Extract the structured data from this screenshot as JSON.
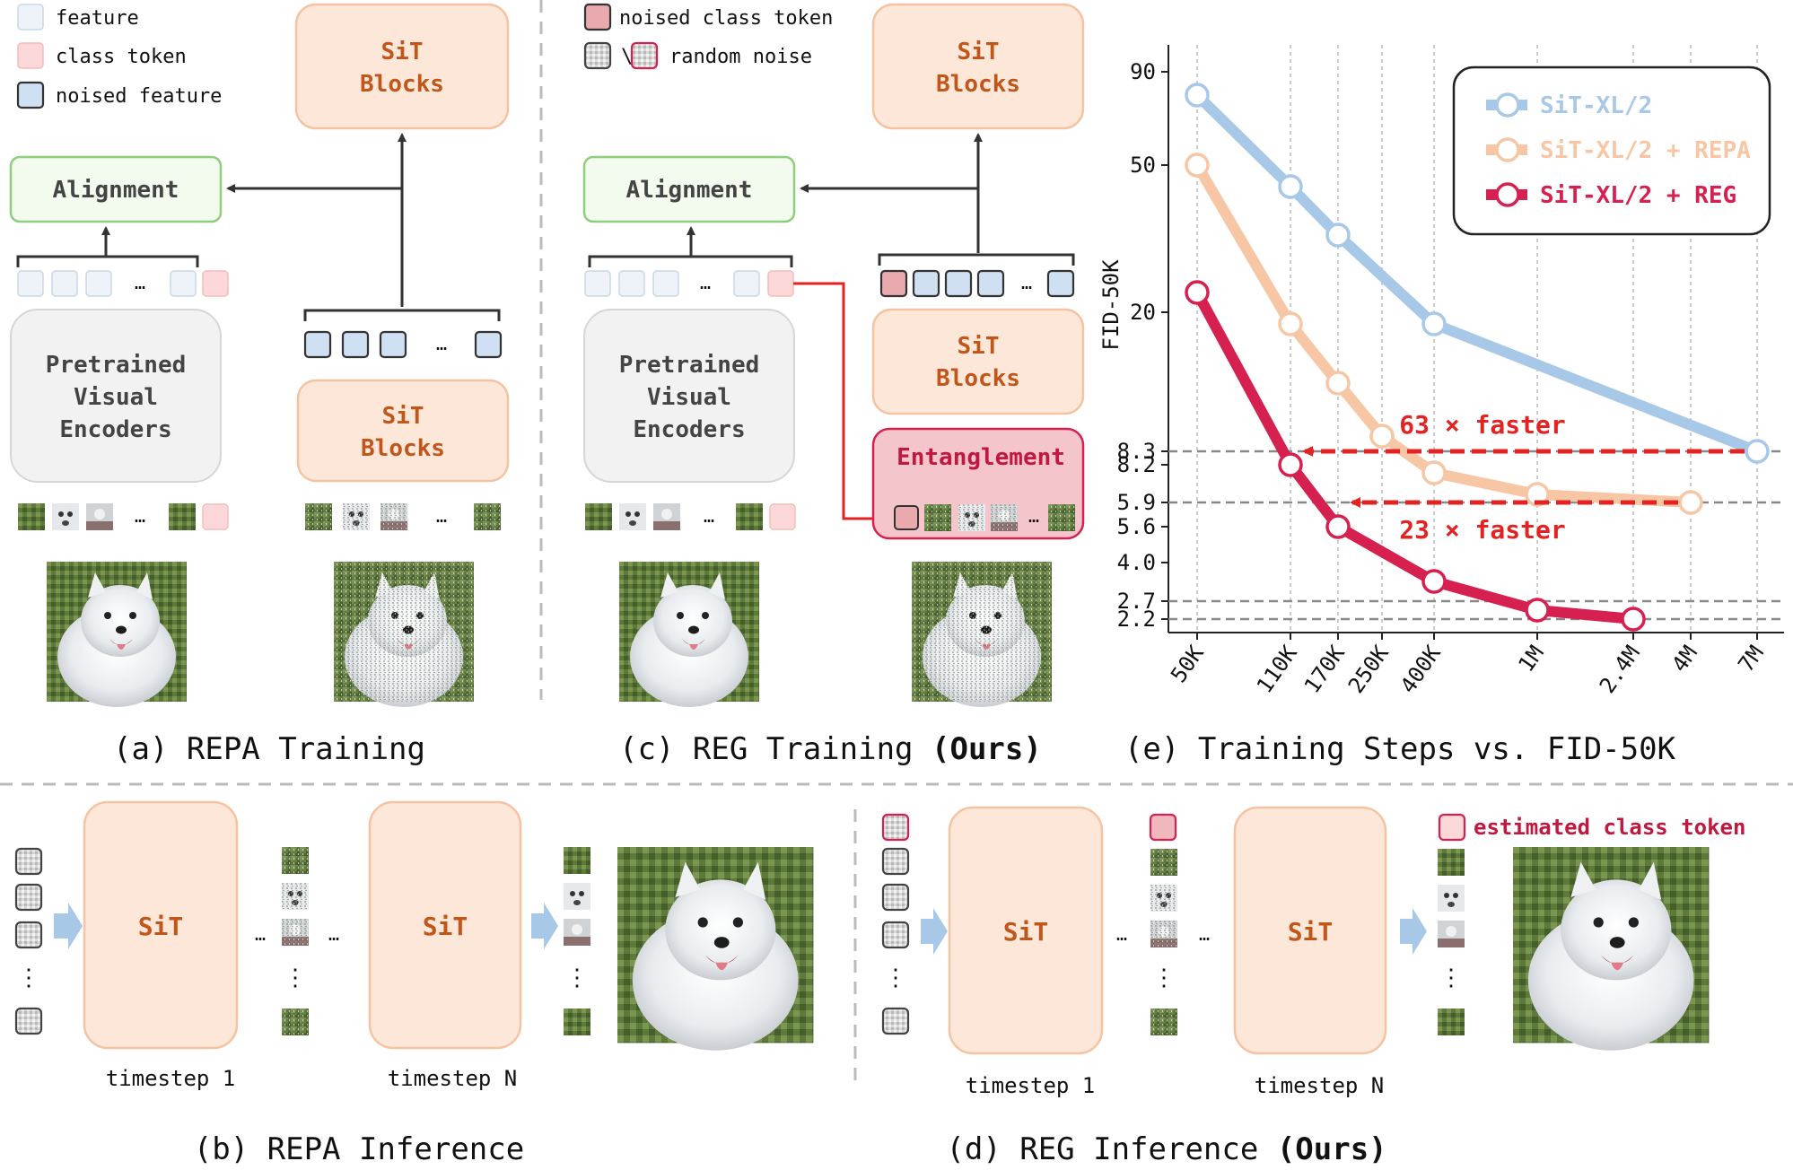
{
  "legend_left": {
    "feature": "feature",
    "class_token": "class token",
    "noised_feature": "noised feature"
  },
  "legend_mid": {
    "noised_class_token": "noised class token",
    "slash": "\\",
    "random_noise": "random noise"
  },
  "blocks": {
    "sit_line1": "SiT",
    "sit_line2": "Blocks",
    "alignment": "Alignment",
    "encoder_line1": "Pretrained",
    "encoder_line2": "Visual",
    "encoder_line3": "Encoders",
    "entanglement": "Entanglement",
    "sit": "SiT",
    "ellipsis": "…",
    "vdots": "⋮"
  },
  "captions": {
    "a": "(a) REPA Training",
    "c_prefix": "(c) REG Training ",
    "c_bold": "(Ours)",
    "e": "(e) Training Steps vs. FID-50K",
    "b": "(b) REPA Inference",
    "d_prefix": "(d) REG Inference ",
    "d_bold": "(Ours)"
  },
  "inference": {
    "timestep_1": "timestep 1",
    "timestep_n": "timestep N",
    "estimated_class_token": "estimated class token"
  },
  "colors": {
    "orange_fill": "#fde7d9",
    "orange_stroke": "#f5c3a2",
    "orange_text": "#c0561a",
    "green_stroke": "#8fce7e",
    "green_fill": "#f3fbef",
    "encoder_fill": "#f2f2f2",
    "blue_series": "#a8c8e8",
    "peach_series": "#f7c7a5",
    "red_series": "#d6204f",
    "arrow_red": "#e52222"
  },
  "chart_data": {
    "type": "line",
    "ylabel": "FID-50K",
    "xlabel": "",
    "y_scale": "log",
    "x_ticks": [
      "50K",
      "110K",
      "170K",
      "250K",
      "400K",
      "1M",
      "2.4M",
      "4M",
      "7M"
    ],
    "y_ticks": [
      "90",
      "50",
      "20",
      "8.3",
      "8.2",
      "5.9",
      "5.6",
      "4.0",
      "2.7",
      "2.2"
    ],
    "legend_position": "top-right",
    "series": [
      {
        "name": "SiT-XL/2",
        "x": [
          "50K",
          "110K",
          "170K",
          "400K",
          "7M"
        ],
        "y": [
          80,
          44,
          32,
          19,
          8.3
        ]
      },
      {
        "name": "SiT-XL/2 + REPA",
        "x": [
          "50K",
          "110K",
          "170K",
          "250K",
          "400K",
          "1M",
          "4M"
        ],
        "y": [
          50,
          19,
          13,
          10,
          7.1,
          6.1,
          5.9
        ]
      },
      {
        "name": "SiT-XL/2 + REG",
        "x": [
          "50K",
          "110K",
          "170K",
          "400K",
          "1M",
          "2.4M"
        ],
        "y": [
          22,
          8.2,
          5.6,
          3.3,
          2.5,
          2.2
        ]
      }
    ],
    "hlines": [
      8.3,
      5.9,
      2.7,
      2.2
    ],
    "annotations": [
      {
        "text": "63 × faster",
        "from": "7M",
        "to": "110K",
        "y": 8.3
      },
      {
        "text": "23 × faster",
        "from": "4M",
        "to": "170K",
        "y": 5.9
      }
    ]
  }
}
